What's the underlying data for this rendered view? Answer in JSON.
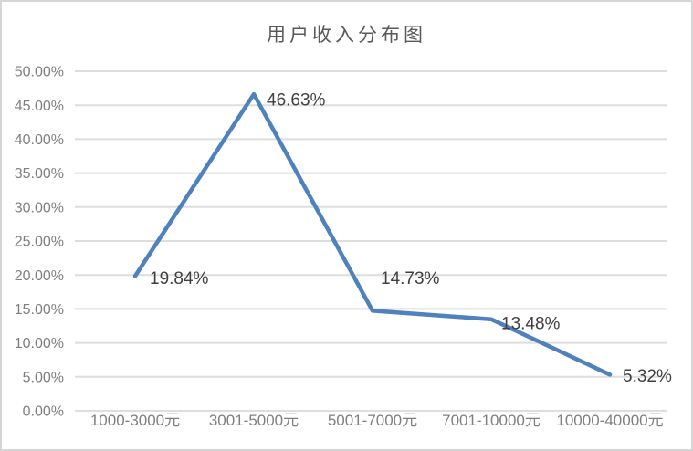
{
  "chart_data": {
    "type": "line",
    "title": "用户收入分布图",
    "categories": [
      "1000-3000元",
      "3001-5000元",
      "5001-7000元",
      "7001-10000元",
      "10000-40000元"
    ],
    "values": [
      19.84,
      46.63,
      14.73,
      13.48,
      5.32
    ],
    "data_labels": [
      "19.84%",
      "46.63%",
      "14.73%",
      "13.48%",
      "5.32%"
    ],
    "ytick_labels": [
      "0.00%",
      "5.00%",
      "10.00%",
      "15.00%",
      "20.00%",
      "25.00%",
      "30.00%",
      "35.00%",
      "40.00%",
      "45.00%",
      "50.00%"
    ],
    "ylim": [
      0,
      50
    ],
    "ytick_step": 5,
    "xlabel": "",
    "ylabel": "",
    "grid": "horizontal",
    "legend": "none",
    "colors": {
      "line": "#4F81BD",
      "gridline": "#DEDEDE",
      "axis_text": "#7F7F7F",
      "data_label_text": "#404040",
      "title_text": "#595959",
      "frame_border": "#D6D6D6",
      "background": "#FFFFFF"
    }
  }
}
